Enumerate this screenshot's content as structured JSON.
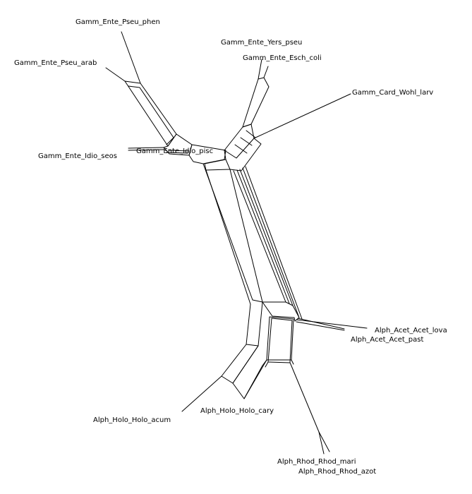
{
  "diagram": {
    "type": "phylogenetic-split-network",
    "taxa": [
      {
        "id": "pseu-phen",
        "label": "Gamm_Ente_Pseu_phen"
      },
      {
        "id": "pseu-arab",
        "label": "Gamm_Ente_Pseu_arab"
      },
      {
        "id": "yers-pseu",
        "label": "Gamm_Ente_Yers_pseu"
      },
      {
        "id": "esch-coli",
        "label": "Gamm_Ente_Esch_coli"
      },
      {
        "id": "wohl-larv",
        "label": "Gamm_Card_Wohl_larv"
      },
      {
        "id": "idio-seos",
        "label": "Gamm_Ente_Idio_seos"
      },
      {
        "id": "idio-pisc",
        "label": "Gamm_Ente_Idio_pisc"
      },
      {
        "id": "acet-lova",
        "label": "Alph_Acet_Acet_lova"
      },
      {
        "id": "acet-past",
        "label": "Alph_Acet_Acet_past"
      },
      {
        "id": "holo-acum",
        "label": "Alph_Holo_Holo_acum"
      },
      {
        "id": "holo-cary",
        "label": "Alph_Holo_Holo_cary"
      },
      {
        "id": "rhod-mari",
        "label": "Alph_Rhod_Rhod_mari"
      },
      {
        "id": "rhod-azot",
        "label": "Alph_Rhod_Rhod_azot"
      }
    ]
  }
}
